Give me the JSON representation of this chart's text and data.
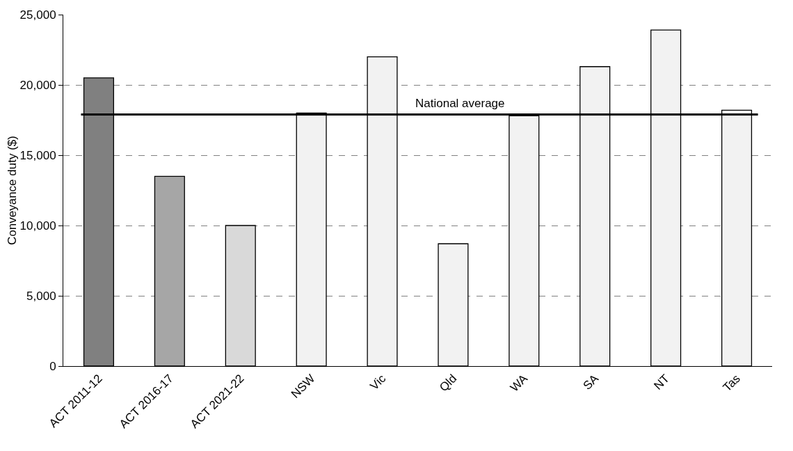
{
  "chart_data": {
    "type": "bar",
    "ylabel": "Conveyance duty ($)",
    "categories": [
      "ACT 2011-12",
      "ACT 2016-17",
      "ACT 2021-22",
      "NSW",
      "Vic",
      "Qld",
      "WA",
      "SA",
      "NT",
      "Tas"
    ],
    "values": [
      20500,
      13500,
      10000,
      18000,
      22000,
      8700,
      17800,
      21300,
      23900,
      18200
    ],
    "colors": [
      "#808080",
      "#a6a6a6",
      "#d9d9d9",
      "#f2f2f2",
      "#f2f2f2",
      "#f2f2f2",
      "#f2f2f2",
      "#f2f2f2",
      "#f2f2f2",
      "#f2f2f2"
    ],
    "ylim": [
      0,
      25000
    ],
    "yticks": [
      0,
      {
        "value": 5000,
        "label": "5,000"
      },
      {
        "value": 10000,
        "label": "10,000"
      },
      {
        "value": 15000,
        "label": "15,000"
      },
      {
        "value": 20000,
        "label": "20,000"
      },
      {
        "value": 25000,
        "label": "25,000"
      }
    ],
    "grid": "y",
    "ref_lines": [
      {
        "axis": "y",
        "value": 17900,
        "label": "National average",
        "color": "#000000",
        "line_style": "solid"
      }
    ]
  }
}
